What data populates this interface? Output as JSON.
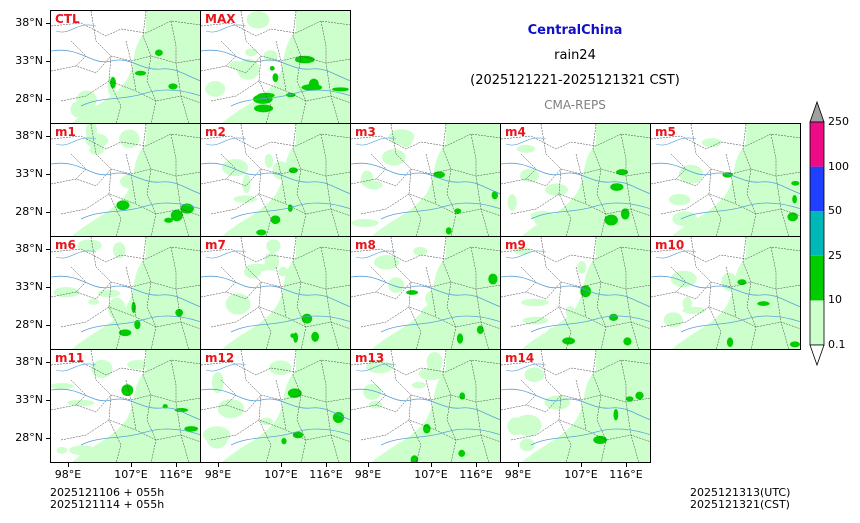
{
  "chart_data": {
    "type": "heatmap",
    "title": "CentralChina",
    "variable": "rain24",
    "period": "(2025121221-2025121321 CST)",
    "source": "CMA-REPS",
    "panels": [
      "CTL",
      "MAX",
      "m1",
      "m2",
      "m3",
      "m4",
      "m5",
      "m6",
      "m7",
      "m8",
      "m9",
      "m10",
      "m11",
      "m12",
      "m13",
      "m14"
    ],
    "x_ticks": [
      "98°E",
      "107°E",
      "116°E"
    ],
    "y_ticks": [
      "38°N",
      "33°N",
      "28°N"
    ],
    "colorbar": {
      "levels": [
        "0.1",
        "10",
        "25",
        "50",
        "100",
        "250"
      ],
      "colors": [
        "#ccffcc",
        "#00cc00",
        "#00b8b8",
        "#2040ff",
        "#ee0c86"
      ],
      "extend_min_color": "#ffffff",
      "extend_max_color": "#a0a0a0"
    }
  },
  "footer": {
    "init_utc": "2025121106  +  055h",
    "init_cst": "2025121114  +  055h",
    "valid_utc": "2025121313(UTC)",
    "valid_cst": "2025121321(CST)"
  },
  "colors": {
    "title": "#1010c8",
    "source": "#808080",
    "label": "#e8161b"
  }
}
